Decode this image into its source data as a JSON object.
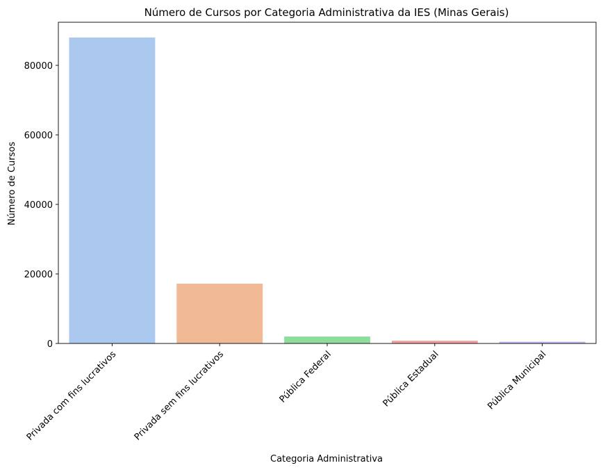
{
  "chart_data": {
    "type": "bar",
    "title": "Número de Cursos por Categoria Administrativa da IES (Minas Gerais)",
    "xlabel": "Categoria Administrativa",
    "ylabel": "Número de Cursos",
    "categories": [
      "Privada com fins lucrativos",
      "Privada sem fins lucrativos",
      "Pública Federal",
      "Pública Estadual",
      "Pública Municipal"
    ],
    "values": [
      88000,
      17200,
      2000,
      800,
      500
    ],
    "colors": [
      "#abc9ee",
      "#f1b994",
      "#8fdd9d",
      "#f2a2a0",
      "#c4b5f4"
    ],
    "ylim": [
      0,
      92400
    ],
    "yticks": [
      0,
      20000,
      40000,
      60000,
      80000
    ],
    "grid": false,
    "legend": "none"
  }
}
